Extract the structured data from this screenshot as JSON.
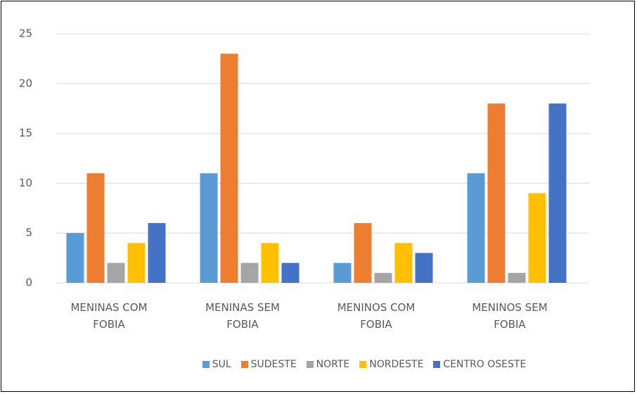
{
  "chart_data": {
    "type": "bar",
    "categories": [
      "MENINAS COM FOBIA",
      "MENINAS SEM FOBIA",
      "MENINOS COM FOBIA",
      "MENINOS SEM FOBIA"
    ],
    "series": [
      {
        "name": "SUL",
        "color": "#5b9bd5",
        "values": [
          5,
          11,
          2,
          11
        ]
      },
      {
        "name": "SUDESTE",
        "color": "#ed7d31",
        "values": [
          11,
          23,
          6,
          18
        ]
      },
      {
        "name": "NORTE",
        "color": "#a5a5a5",
        "values": [
          2,
          2,
          1,
          1
        ]
      },
      {
        "name": "NORDESTE",
        "color": "#ffc000",
        "values": [
          4,
          4,
          4,
          9
        ]
      },
      {
        "name": "CENTRO OSESTE",
        "color": "#4472c4",
        "values": [
          6,
          2,
          3,
          18
        ]
      }
    ],
    "ylim": [
      0,
      25
    ],
    "yticks": [
      0,
      5,
      10,
      15,
      20,
      25
    ],
    "grid": true,
    "legend": "bottom"
  }
}
